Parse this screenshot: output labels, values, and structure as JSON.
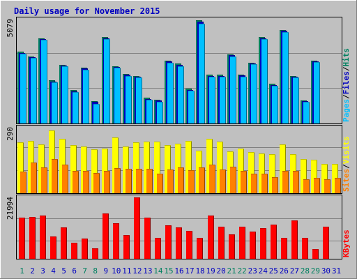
{
  "title": "Daily usage for November 2015",
  "colors": {
    "background": "#C0C0C0",
    "frame": "#ffffff",
    "title": "#0000C0",
    "pages": "#00C0FF",
    "files": "#0000C0",
    "hits": "#008060",
    "sites": "#FF8000",
    "visits": "#FFFF00",
    "kbytes": "#FF0000",
    "weekday_label": "#0000C0",
    "weekend_label": "#008060"
  },
  "chart_data": [
    {
      "type": "bar",
      "title": "Daily usage for November 2015",
      "categories": [
        "1",
        "2",
        "3",
        "4",
        "5",
        "6",
        "7",
        "8",
        "9",
        "10",
        "11",
        "12",
        "13",
        "14",
        "15",
        "16",
        "17",
        "18",
        "19",
        "20",
        "21",
        "22",
        "23",
        "24",
        "25",
        "26",
        "27",
        "28",
        "29",
        "30",
        "31"
      ],
      "weekend_days": [
        "1",
        "7",
        "8",
        "14",
        "15",
        "21",
        "22",
        "28",
        "29"
      ],
      "ylabel_parts": [
        "Pages",
        "/",
        "Files",
        "/",
        "Hits"
      ],
      "ymax_label": "5079",
      "ylim": [
        0,
        5079
      ],
      "series": [
        {
          "name": "Hits",
          "values": [
            3500,
            3280,
            4170,
            2120,
            2870,
            1620,
            2720,
            1090,
            4230,
            2810,
            2420,
            2330,
            1250,
            1160,
            3080,
            2920,
            1700,
            5030,
            2370,
            2370,
            3380,
            2390,
            2980,
            4230,
            1930,
            4580,
            2330,
            1140,
            3080,
            null,
            null
          ]
        },
        {
          "name": "Files",
          "values": [
            3450,
            3250,
            4120,
            2050,
            2820,
            1570,
            2680,
            1040,
            4170,
            2760,
            2370,
            2290,
            1210,
            1120,
            3020,
            2860,
            1650,
            4960,
            2320,
            2330,
            3330,
            2340,
            2940,
            4170,
            1880,
            4530,
            2280,
            1100,
            3020,
            null,
            null
          ]
        },
        {
          "name": "Pages",
          "values": [
            3400,
            3200,
            4080,
            2000,
            2780,
            1520,
            2640,
            960,
            4120,
            2710,
            2330,
            2250,
            1160,
            1060,
            2970,
            2810,
            1610,
            4880,
            2280,
            2290,
            3280,
            2300,
            2900,
            4110,
            1840,
            4480,
            2240,
            1070,
            3000,
            null,
            null
          ]
        }
      ]
    },
    {
      "type": "bar",
      "categories": [
        "1",
        "2",
        "3",
        "4",
        "5",
        "6",
        "7",
        "8",
        "9",
        "10",
        "11",
        "12",
        "13",
        "14",
        "15",
        "16",
        "17",
        "18",
        "19",
        "20",
        "21",
        "22",
        "23",
        "24",
        "25",
        "26",
        "27",
        "28",
        "29",
        "30",
        "31"
      ],
      "ylabel_parts": [
        "Sites",
        "/",
        "Visits"
      ],
      "ymax_label": "290",
      "ylim": [
        0,
        290
      ],
      "series": [
        {
          "name": "Visits",
          "values": [
            224,
            230,
            217,
            278,
            241,
            213,
            207,
            194,
            198,
            248,
            208,
            225,
            229,
            228,
            214,
            219,
            231,
            189,
            241,
            229,
            184,
            198,
            182,
            177,
            172,
            217,
            172,
            152,
            148,
            129,
            129
          ]
        },
        {
          "name": "Sites",
          "values": [
            95,
            137,
            114,
            152,
            127,
            100,
            98,
            88,
            99,
            112,
            107,
            108,
            107,
            87,
            104,
            113,
            101,
            114,
            127,
            104,
            117,
            99,
            86,
            86,
            72,
            98,
            98,
            61,
            67,
            62,
            68
          ]
        }
      ]
    },
    {
      "type": "bar",
      "categories": [
        "1",
        "2",
        "3",
        "4",
        "5",
        "6",
        "7",
        "8",
        "9",
        "10",
        "11",
        "12",
        "13",
        "14",
        "15",
        "16",
        "17",
        "18",
        "19",
        "20",
        "21",
        "22",
        "23",
        "24",
        "25",
        "26",
        "27",
        "28",
        "29",
        "30",
        "31"
      ],
      "ylabel_parts": [
        "KBytes"
      ],
      "ymax_label": "21994",
      "ylim": [
        0,
        21994
      ],
      "series": [
        {
          "name": "KBytes",
          "values": [
            14800,
            14900,
            15500,
            7900,
            11300,
            5800,
            7300,
            3700,
            16300,
            12700,
            8500,
            21900,
            14800,
            7600,
            11900,
            11300,
            10000,
            7600,
            15400,
            11400,
            8700,
            11600,
            9800,
            11000,
            12300,
            7600,
            13700,
            7400,
            3400,
            11500,
            null
          ]
        }
      ]
    }
  ]
}
